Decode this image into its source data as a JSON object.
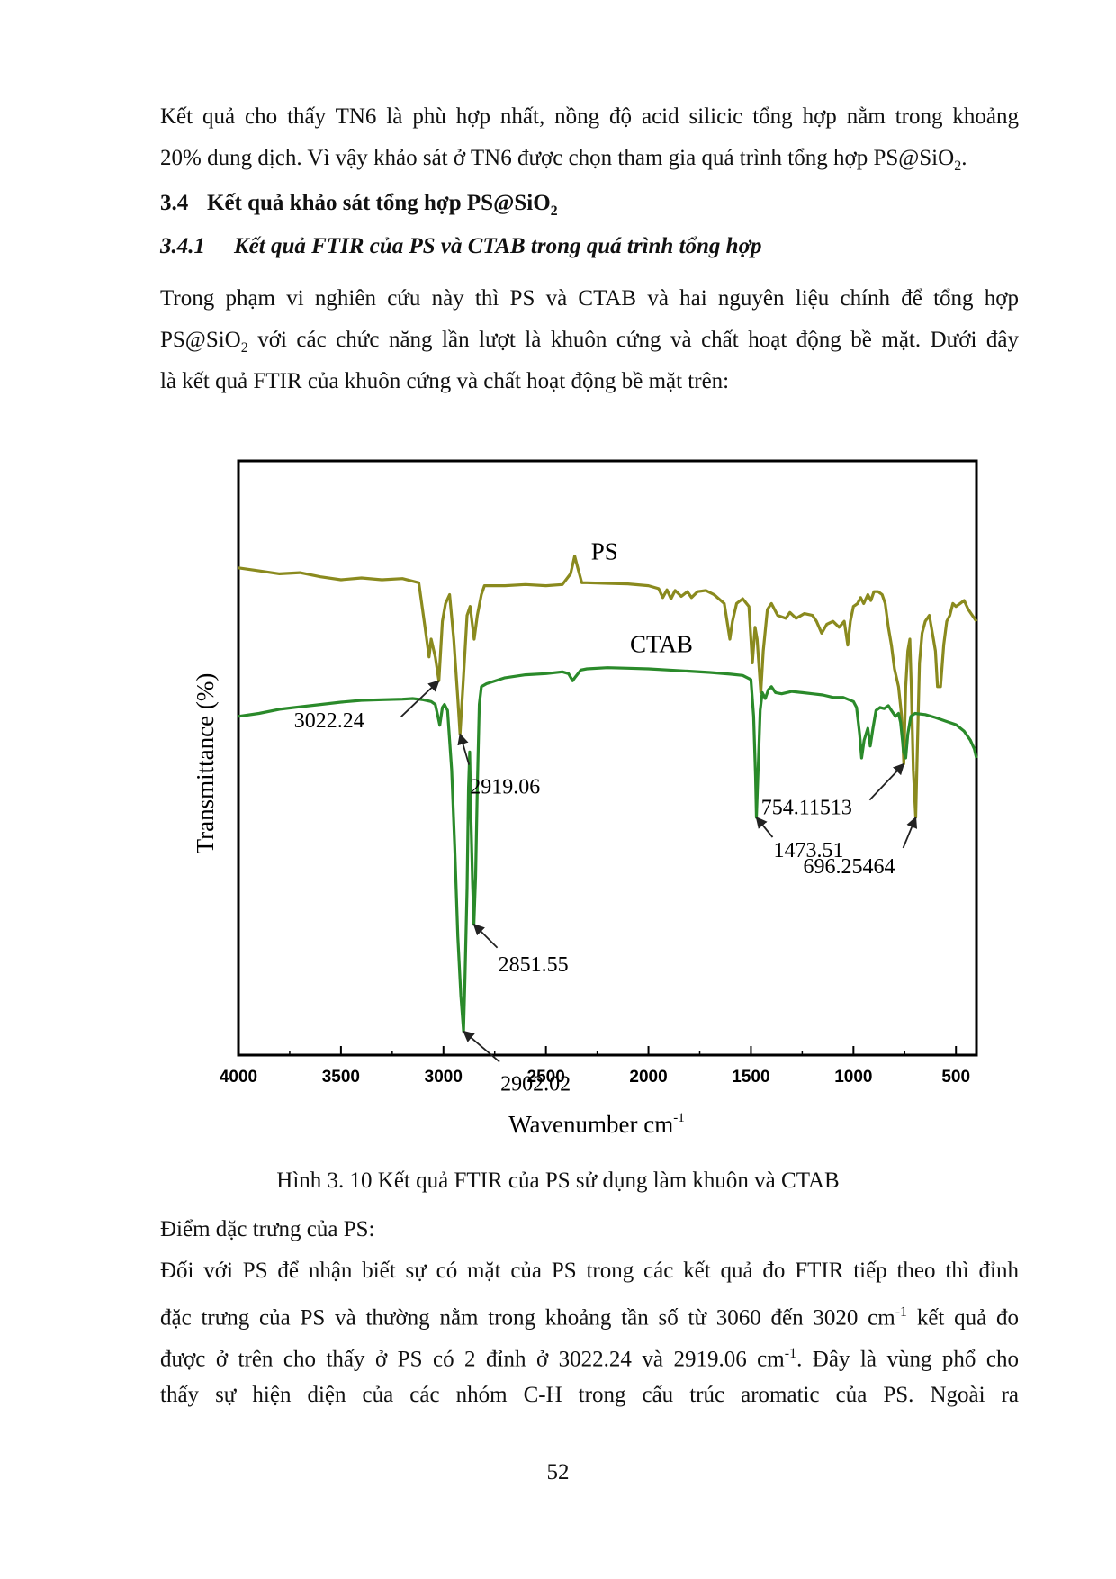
{
  "paragraph1": {
    "line1": "Kết quả cho thấy TN6 là phù hợp nhất, nồng độ acid silicic tổng hợp nằm trong khoảng",
    "line2_a": "20% dung dịch. Vì vậy khảo sát ở TN6 được chọn tham gia quá trình tổng hợp PS@SiO",
    "line2_sub": "2",
    "line2_b": "."
  },
  "section_heading": {
    "number": "3.4",
    "text_a": "Kết quả khảo sát tổng hợp PS@SiO",
    "text_sub": "2"
  },
  "subsection_heading": {
    "number": "3.4.1",
    "text": "Kết quả FTIR của PS và CTAB trong quá trình tổng hợp"
  },
  "paragraph2": {
    "line1": "Trong phạm vi nghiên cứu này thì PS và CTAB và hai nguyên liệu chính để tổng hợp",
    "line2_a": "PS@SiO",
    "line2_sub": "2",
    "line2_b": " với các chức năng lần lượt là khuôn cứng và chất hoạt động bề mặt. Dưới đây",
    "line3": "là kết quả FTIR của khuôn cứng và chất hoạt động bề mặt trên:"
  },
  "figure_caption": "Hình 3. 10 Kết quả FTIR của PS sử dụng làm khuôn và CTAB",
  "paragraph3": {
    "line1": "Điểm đặc trưng của PS:",
    "line2": "Đối với PS để nhận biết sự có mặt của PS trong các kết quả đo FTIR tiếp theo thì đỉnh",
    "line3_a": "đặc trưng của PS và thường nằm trong khoảng tần số từ 3060 đến 3020 cm",
    "line3_sup": "-1",
    "line3_b": " kết quả đo",
    "line4_a": "được ở trên cho thấy ở PS có 2 đỉnh ở 3022.24 và 2919.06 cm",
    "line4_sup": "-1",
    "line4_b": ". Đây là vùng phổ cho",
    "line5": "thấy sự hiện diện của các nhóm C-H trong cấu trúc aromatic của PS. Ngoài ra"
  },
  "page_number": "52",
  "chart_data": {
    "type": "line",
    "xlabel": "Wavenumber cm",
    "xlabel_sup": "-1",
    "ylabel": "Transmittance (%)",
    "xlim": [
      4000,
      400
    ],
    "ylim": [
      0,
      100
    ],
    "x_ticks": [
      4000,
      3500,
      3000,
      2500,
      2000,
      1500,
      1000,
      500
    ],
    "y_ticks_shown": false,
    "grid": false,
    "series": [
      {
        "name": "PS",
        "color": "#8a8a1e",
        "points": [
          [
            4000,
            82
          ],
          [
            3900,
            81.5
          ],
          [
            3800,
            81
          ],
          [
            3700,
            81.2
          ],
          [
            3600,
            80.5
          ],
          [
            3500,
            80
          ],
          [
            3400,
            80.3
          ],
          [
            3300,
            80
          ],
          [
            3200,
            80.2
          ],
          [
            3120,
            79.5
          ],
          [
            3090,
            72
          ],
          [
            3070,
            67
          ],
          [
            3060,
            70
          ],
          [
            3040,
            67
          ],
          [
            3022.24,
            63
          ],
          [
            3005,
            73
          ],
          [
            2990,
            76
          ],
          [
            2970,
            77.5
          ],
          [
            2950,
            70
          ],
          [
            2930,
            60
          ],
          [
            2919.06,
            54
          ],
          [
            2905,
            62
          ],
          [
            2885,
            74
          ],
          [
            2870,
            75.5
          ],
          [
            2850,
            70
          ],
          [
            2835,
            74
          ],
          [
            2815,
            77.5
          ],
          [
            2800,
            79
          ],
          [
            2700,
            79
          ],
          [
            2600,
            79.2
          ],
          [
            2500,
            79
          ],
          [
            2420,
            79.2
          ],
          [
            2380,
            81
          ],
          [
            2360,
            84
          ],
          [
            2345,
            82
          ],
          [
            2325,
            79.5
          ],
          [
            2300,
            79.5
          ],
          [
            2200,
            79.4
          ],
          [
            2100,
            79.3
          ],
          [
            2000,
            79
          ],
          [
            1950,
            78.5
          ],
          [
            1930,
            77
          ],
          [
            1910,
            78.3
          ],
          [
            1890,
            76.8
          ],
          [
            1870,
            78.2
          ],
          [
            1840,
            77.2
          ],
          [
            1810,
            78
          ],
          [
            1790,
            77
          ],
          [
            1760,
            78
          ],
          [
            1720,
            78.2
          ],
          [
            1680,
            77.5
          ],
          [
            1630,
            76
          ],
          [
            1603,
            70
          ],
          [
            1590,
            73
          ],
          [
            1570,
            76
          ],
          [
            1540,
            76.8
          ],
          [
            1510,
            75.5
          ],
          [
            1493,
            66
          ],
          [
            1480,
            72
          ],
          [
            1470,
            70
          ],
          [
            1452,
            61
          ],
          [
            1440,
            68
          ],
          [
            1420,
            75
          ],
          [
            1400,
            76
          ],
          [
            1370,
            74
          ],
          [
            1330,
            73.5
          ],
          [
            1310,
            74.5
          ],
          [
            1280,
            73.5
          ],
          [
            1240,
            74.3
          ],
          [
            1200,
            74
          ],
          [
            1180,
            73
          ],
          [
            1155,
            71
          ],
          [
            1130,
            72.5
          ],
          [
            1100,
            73
          ],
          [
            1070,
            72
          ],
          [
            1045,
            73
          ],
          [
            1028,
            69
          ],
          [
            1015,
            73
          ],
          [
            1000,
            75.5
          ],
          [
            980,
            76
          ],
          [
            965,
            77
          ],
          [
            950,
            76
          ],
          [
            930,
            77.5
          ],
          [
            915,
            76.5
          ],
          [
            900,
            78
          ],
          [
            880,
            78
          ],
          [
            860,
            77.5
          ],
          [
            845,
            76
          ],
          [
            830,
            72
          ],
          [
            815,
            69
          ],
          [
            800,
            65
          ],
          [
            780,
            62
          ],
          [
            765,
            57
          ],
          [
            754.11,
            49
          ],
          [
            745,
            62
          ],
          [
            735,
            68
          ],
          [
            725,
            70
          ],
          [
            718,
            62
          ],
          [
            708,
            48
          ],
          [
            696.25,
            40
          ],
          [
            688,
            52
          ],
          [
            678,
            66
          ],
          [
            665,
            71
          ],
          [
            650,
            73
          ],
          [
            630,
            74
          ],
          [
            610,
            70
          ],
          [
            600,
            68
          ],
          [
            590,
            62
          ],
          [
            575,
            62
          ],
          [
            560,
            69
          ],
          [
            545,
            73
          ],
          [
            530,
            74
          ],
          [
            515,
            76
          ],
          [
            500,
            75.5
          ],
          [
            480,
            76
          ],
          [
            460,
            76.5
          ],
          [
            440,
            75
          ],
          [
            420,
            74
          ],
          [
            400,
            73
          ]
        ]
      },
      {
        "name": "CTAB",
        "color": "#2a8a2a",
        "points": [
          [
            4000,
            57
          ],
          [
            3900,
            57.5
          ],
          [
            3800,
            58.2
          ],
          [
            3700,
            58.6
          ],
          [
            3600,
            59
          ],
          [
            3500,
            59.4
          ],
          [
            3400,
            59.7
          ],
          [
            3300,
            59.8
          ],
          [
            3200,
            59.9
          ],
          [
            3150,
            60
          ],
          [
            3100,
            59.8
          ],
          [
            3060,
            59.5
          ],
          [
            3040,
            59
          ],
          [
            3030,
            57.5
          ],
          [
            3018,
            55.5
          ],
          [
            3005,
            58.5
          ],
          [
            2995,
            59
          ],
          [
            2980,
            58
          ],
          [
            2960,
            48
          ],
          [
            2945,
            35
          ],
          [
            2930,
            20
          ],
          [
            2915,
            10
          ],
          [
            2902.02,
            4
          ],
          [
            2895,
            13
          ],
          [
            2885,
            28
          ],
          [
            2878,
            45
          ],
          [
            2872,
            51
          ],
          [
            2866,
            40
          ],
          [
            2858,
            29
          ],
          [
            2851.55,
            22
          ],
          [
            2843,
            30
          ],
          [
            2835,
            45
          ],
          [
            2825,
            59
          ],
          [
            2815,
            62
          ],
          [
            2790,
            62.5
          ],
          [
            2700,
            63.5
          ],
          [
            2600,
            64
          ],
          [
            2500,
            64.2
          ],
          [
            2420,
            64.5
          ],
          [
            2390,
            64.2
          ],
          [
            2370,
            63
          ],
          [
            2355,
            63.7
          ],
          [
            2330,
            64.8
          ],
          [
            2300,
            65
          ],
          [
            2200,
            65.2
          ],
          [
            2100,
            65.1
          ],
          [
            2000,
            65
          ],
          [
            1900,
            64.8
          ],
          [
            1800,
            64.6
          ],
          [
            1700,
            64.4
          ],
          [
            1600,
            64.1
          ],
          [
            1540,
            63.9
          ],
          [
            1500,
            63.2
          ],
          [
            1487,
            57
          ],
          [
            1478,
            47
          ],
          [
            1473.51,
            40
          ],
          [
            1465,
            48
          ],
          [
            1455,
            58
          ],
          [
            1445,
            61
          ],
          [
            1430,
            60
          ],
          [
            1415,
            61.5
          ],
          [
            1400,
            62
          ],
          [
            1380,
            61
          ],
          [
            1350,
            60.8
          ],
          [
            1300,
            61.2
          ],
          [
            1250,
            61
          ],
          [
            1200,
            60.8
          ],
          [
            1150,
            60.6
          ],
          [
            1100,
            60.2
          ],
          [
            1050,
            60.2
          ],
          [
            1000,
            59.5
          ],
          [
            985,
            58.5
          ],
          [
            970,
            54
          ],
          [
            960,
            50
          ],
          [
            948,
            53
          ],
          [
            930,
            55
          ],
          [
            918,
            52
          ],
          [
            905,
            55
          ],
          [
            890,
            58
          ],
          [
            870,
            58.5
          ],
          [
            850,
            58.3
          ],
          [
            830,
            58.8
          ],
          [
            815,
            58
          ],
          [
            795,
            57
          ],
          [
            780,
            57.5
          ],
          [
            770,
            56
          ],
          [
            755,
            51
          ],
          [
            745,
            50
          ],
          [
            735,
            54
          ],
          [
            720,
            57
          ],
          [
            700,
            57.5
          ],
          [
            650,
            57.3
          ],
          [
            600,
            56.8
          ],
          [
            550,
            56.2
          ],
          [
            500,
            55.6
          ],
          [
            460,
            54.5
          ],
          [
            430,
            53
          ],
          [
            410,
            51.5
          ],
          [
            400,
            50
          ]
        ]
      }
    ],
    "series_labels": [
      {
        "text": "PS",
        "series": "PS"
      },
      {
        "text": "CTAB",
        "series": "CTAB"
      }
    ],
    "annotations": [
      {
        "text": "3022.24",
        "x": 3022.24,
        "series": "PS"
      },
      {
        "text": "2919.06",
        "x": 2919.06,
        "series": "PS"
      },
      {
        "text": "754.11513",
        "x": 754.11,
        "series": "PS"
      },
      {
        "text": "696.25464",
        "x": 696.25,
        "series": "PS"
      },
      {
        "text": "2851.55",
        "x": 2851.55,
        "series": "CTAB"
      },
      {
        "text": "2902.02",
        "x": 2902.02,
        "series": "CTAB"
      },
      {
        "text": "1473.51",
        "x": 1473.51,
        "series": "CTAB"
      }
    ]
  }
}
